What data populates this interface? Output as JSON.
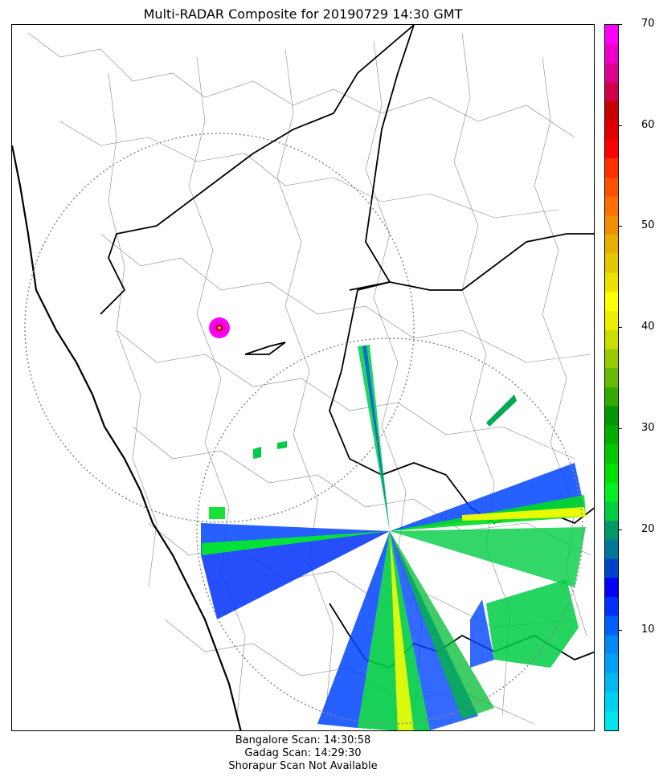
{
  "title": "Multi-RADAR Composite for 20190729 14:30 GMT",
  "colorbar": {
    "min": 0,
    "max": 70,
    "ticks": [
      "10",
      "20",
      "30",
      "40",
      "50",
      "60",
      "70"
    ],
    "colors": [
      "#00e5ee",
      "#00d0f0",
      "#00b8f2",
      "#00a0f4",
      "#0088f6",
      "#0060f8",
      "#0030fa",
      "#0000ff",
      "#0044cc",
      "#007799",
      "#009966",
      "#00cc44",
      "#00ee22",
      "#00e000",
      "#00c800",
      "#00b000",
      "#009800",
      "#33aa00",
      "#66bb00",
      "#99cc00",
      "#ccdd00",
      "#eeee00",
      "#ffff00",
      "#f0e000",
      "#e6c800",
      "#e6b000",
      "#f09000",
      "#ff7000",
      "#ff5000",
      "#ff3000",
      "#ff0000",
      "#e00000",
      "#c80000",
      "#d0004a",
      "#e00090",
      "#ee00cc",
      "#ff00ff"
    ]
  },
  "map": {
    "radars": [
      {
        "name": "Gadag",
        "status": "scan"
      },
      {
        "name": "Bangalore",
        "status": "scan"
      }
    ]
  },
  "footer": {
    "line1": "Bangalore Scan: 14:30:58",
    "line2": "Gadag Scan: 14:29:30",
    "line3": "Shorapur Scan Not Available"
  }
}
